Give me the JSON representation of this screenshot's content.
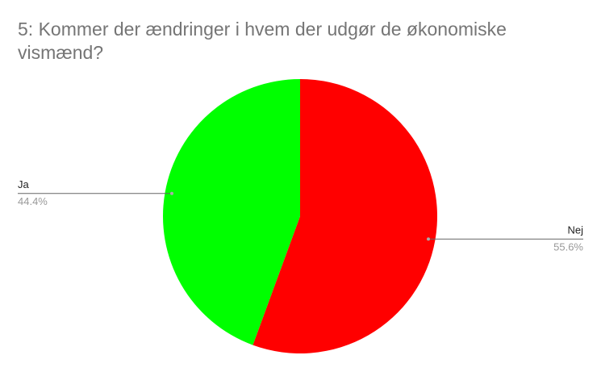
{
  "chart_data": {
    "type": "pie",
    "title": "5: Kommer der ændringer i hvem der udgør de økonomiske vismænd?",
    "categories": [
      "Nej",
      "Ja"
    ],
    "values": [
      55.6,
      44.4
    ],
    "value_labels": [
      "55.6%",
      "44.4%"
    ],
    "colors": [
      "#ff0000",
      "#00ff00"
    ]
  }
}
